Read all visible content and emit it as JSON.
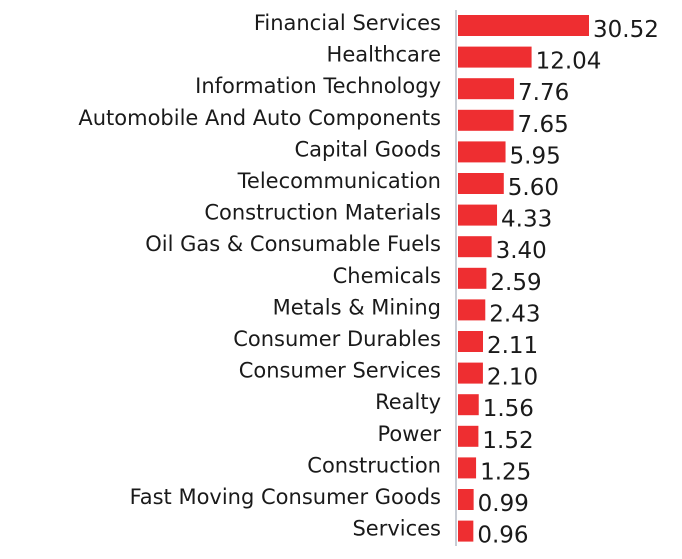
{
  "chart_data": {
    "type": "bar",
    "orientation": "horizontal",
    "categories": [
      "Financial Services",
      "Healthcare",
      "Information Technology",
      "Automobile And Auto Components",
      "Capital Goods",
      "Telecommunication",
      "Construction Materials",
      "Oil Gas & Consumable Fuels",
      "Chemicals",
      "Metals & Mining",
      "Consumer Durables",
      "Consumer Services",
      "Realty",
      "Power",
      "Construction",
      "Fast Moving Consumer Goods",
      "Services"
    ],
    "values": [
      30.52,
      12.04,
      7.76,
      7.65,
      5.95,
      5.6,
      4.33,
      3.4,
      2.59,
      2.43,
      2.11,
      2.1,
      1.56,
      1.52,
      1.25,
      0.99,
      0.96
    ],
    "value_labels": [
      "30.52",
      "12.04",
      "7.76",
      "7.65",
      "5.95",
      "5.60",
      "4.33",
      "3.40",
      "2.59",
      "2.43",
      "2.11",
      "2.10",
      "1.56",
      "1.52",
      "1.25",
      "0.99",
      "0.96"
    ],
    "title": "",
    "xlabel": "",
    "ylabel": "",
    "grid": false,
    "bar_color": "#ee2e31",
    "axis_color": "#c8ccd4"
  }
}
